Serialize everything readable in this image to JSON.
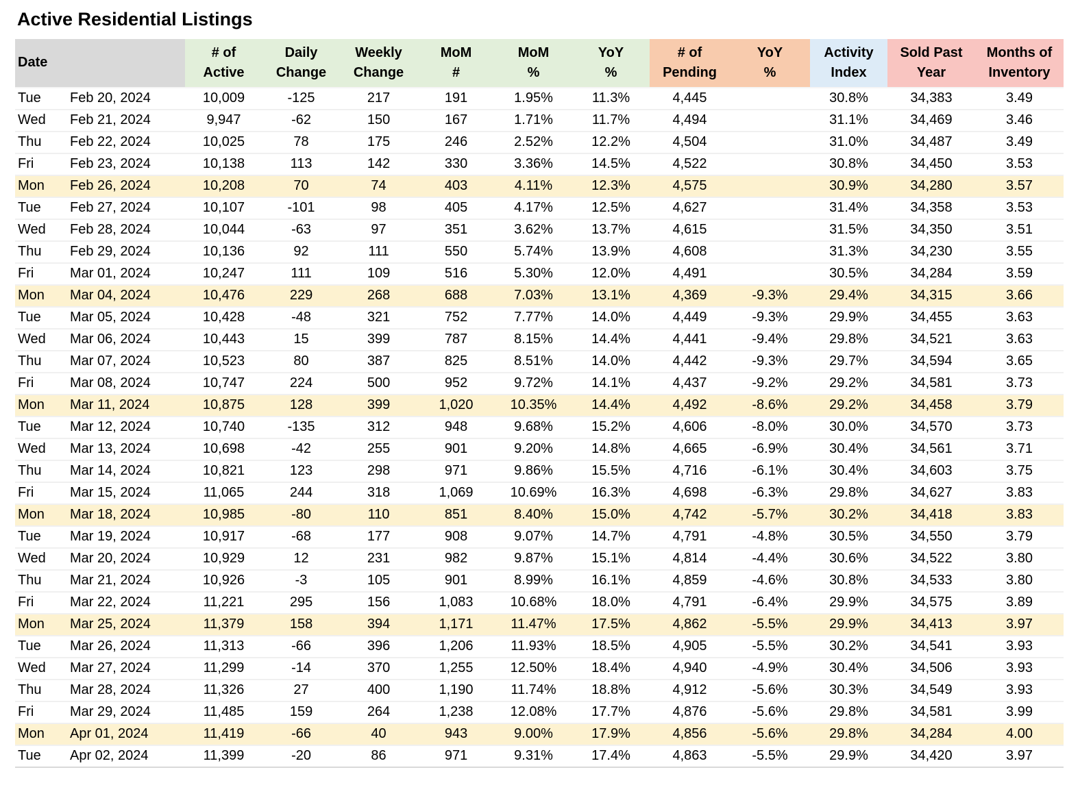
{
  "title": "Active Residential Listings",
  "colors": {
    "header_gray": "#d9d9d9",
    "header_green": "#e2efda",
    "header_orange": "#f8cbad",
    "header_blue": "#ddebf7",
    "header_pink": "#f9c5c1",
    "row_highlight": "#fdf2d0"
  },
  "table": {
    "header": {
      "date_label": "Date",
      "columns": [
        {
          "line1": "# of",
          "line2": "Active",
          "group": "green"
        },
        {
          "line1": "Daily",
          "line2": "Change",
          "group": "green"
        },
        {
          "line1": "Weekly",
          "line2": "Change",
          "group": "green"
        },
        {
          "line1": "MoM",
          "line2": "#",
          "group": "green"
        },
        {
          "line1": "MoM",
          "line2": "%",
          "group": "green"
        },
        {
          "line1": "YoY",
          "line2": "%",
          "group": "green"
        },
        {
          "line1": "# of",
          "line2": "Pending",
          "group": "orange"
        },
        {
          "line1": "YoY",
          "line2": "%",
          "group": "orange"
        },
        {
          "line1": "Activity",
          "line2": "Index",
          "group": "blue"
        },
        {
          "line1": "Sold Past",
          "line2": "Year",
          "group": "pink"
        },
        {
          "line1": "Months of",
          "line2": "Inventory",
          "group": "pink"
        }
      ]
    },
    "rows": [
      {
        "day": "Tue",
        "date": "Feb 20, 2024",
        "highlight": false,
        "values": [
          "10,009",
          "-125",
          "217",
          "191",
          "1.95%",
          "11.3%",
          "4,445",
          "",
          "30.8%",
          "34,383",
          "3.49"
        ]
      },
      {
        "day": "Wed",
        "date": "Feb 21, 2024",
        "highlight": false,
        "values": [
          "9,947",
          "-62",
          "150",
          "167",
          "1.71%",
          "11.7%",
          "4,494",
          "",
          "31.1%",
          "34,469",
          "3.46"
        ]
      },
      {
        "day": "Thu",
        "date": "Feb 22, 2024",
        "highlight": false,
        "values": [
          "10,025",
          "78",
          "175",
          "246",
          "2.52%",
          "12.2%",
          "4,504",
          "",
          "31.0%",
          "34,487",
          "3.49"
        ]
      },
      {
        "day": "Fri",
        "date": "Feb 23, 2024",
        "highlight": false,
        "values": [
          "10,138",
          "113",
          "142",
          "330",
          "3.36%",
          "14.5%",
          "4,522",
          "",
          "30.8%",
          "34,450",
          "3.53"
        ]
      },
      {
        "day": "Mon",
        "date": "Feb 26, 2024",
        "highlight": true,
        "values": [
          "10,208",
          "70",
          "74",
          "403",
          "4.11%",
          "12.3%",
          "4,575",
          "",
          "30.9%",
          "34,280",
          "3.57"
        ]
      },
      {
        "day": "Tue",
        "date": "Feb 27, 2024",
        "highlight": false,
        "values": [
          "10,107",
          "-101",
          "98",
          "405",
          "4.17%",
          "12.5%",
          "4,627",
          "",
          "31.4%",
          "34,358",
          "3.53"
        ]
      },
      {
        "day": "Wed",
        "date": "Feb 28, 2024",
        "highlight": false,
        "values": [
          "10,044",
          "-63",
          "97",
          "351",
          "3.62%",
          "13.7%",
          "4,615",
          "",
          "31.5%",
          "34,350",
          "3.51"
        ]
      },
      {
        "day": "Thu",
        "date": "Feb 29, 2024",
        "highlight": false,
        "values": [
          "10,136",
          "92",
          "111",
          "550",
          "5.74%",
          "13.9%",
          "4,608",
          "",
          "31.3%",
          "34,230",
          "3.55"
        ]
      },
      {
        "day": "Fri",
        "date": "Mar 01, 2024",
        "highlight": false,
        "values": [
          "10,247",
          "111",
          "109",
          "516",
          "5.30%",
          "12.0%",
          "4,491",
          "",
          "30.5%",
          "34,284",
          "3.59"
        ]
      },
      {
        "day": "Mon",
        "date": "Mar 04, 2024",
        "highlight": true,
        "values": [
          "10,476",
          "229",
          "268",
          "688",
          "7.03%",
          "13.1%",
          "4,369",
          "-9.3%",
          "29.4%",
          "34,315",
          "3.66"
        ]
      },
      {
        "day": "Tue",
        "date": "Mar 05, 2024",
        "highlight": false,
        "values": [
          "10,428",
          "-48",
          "321",
          "752",
          "7.77%",
          "14.0%",
          "4,449",
          "-9.3%",
          "29.9%",
          "34,455",
          "3.63"
        ]
      },
      {
        "day": "Wed",
        "date": "Mar 06, 2024",
        "highlight": false,
        "values": [
          "10,443",
          "15",
          "399",
          "787",
          "8.15%",
          "14.4%",
          "4,441",
          "-9.4%",
          "29.8%",
          "34,521",
          "3.63"
        ]
      },
      {
        "day": "Thu",
        "date": "Mar 07, 2024",
        "highlight": false,
        "values": [
          "10,523",
          "80",
          "387",
          "825",
          "8.51%",
          "14.0%",
          "4,442",
          "-9.3%",
          "29.7%",
          "34,594",
          "3.65"
        ]
      },
      {
        "day": "Fri",
        "date": "Mar 08, 2024",
        "highlight": false,
        "values": [
          "10,747",
          "224",
          "500",
          "952",
          "9.72%",
          "14.1%",
          "4,437",
          "-9.2%",
          "29.2%",
          "34,581",
          "3.73"
        ]
      },
      {
        "day": "Mon",
        "date": "Mar 11, 2024",
        "highlight": true,
        "values": [
          "10,875",
          "128",
          "399",
          "1,020",
          "10.35%",
          "14.4%",
          "4,492",
          "-8.6%",
          "29.2%",
          "34,458",
          "3.79"
        ]
      },
      {
        "day": "Tue",
        "date": "Mar 12, 2024",
        "highlight": false,
        "values": [
          "10,740",
          "-135",
          "312",
          "948",
          "9.68%",
          "15.2%",
          "4,606",
          "-8.0%",
          "30.0%",
          "34,570",
          "3.73"
        ]
      },
      {
        "day": "Wed",
        "date": "Mar 13, 2024",
        "highlight": false,
        "values": [
          "10,698",
          "-42",
          "255",
          "901",
          "9.20%",
          "14.8%",
          "4,665",
          "-6.9%",
          "30.4%",
          "34,561",
          "3.71"
        ]
      },
      {
        "day": "Thu",
        "date": "Mar 14, 2024",
        "highlight": false,
        "values": [
          "10,821",
          "123",
          "298",
          "971",
          "9.86%",
          "15.5%",
          "4,716",
          "-6.1%",
          "30.4%",
          "34,603",
          "3.75"
        ]
      },
      {
        "day": "Fri",
        "date": "Mar 15, 2024",
        "highlight": false,
        "values": [
          "11,065",
          "244",
          "318",
          "1,069",
          "10.69%",
          "16.3%",
          "4,698",
          "-6.3%",
          "29.8%",
          "34,627",
          "3.83"
        ]
      },
      {
        "day": "Mon",
        "date": "Mar 18, 2024",
        "highlight": true,
        "values": [
          "10,985",
          "-80",
          "110",
          "851",
          "8.40%",
          "15.0%",
          "4,742",
          "-5.7%",
          "30.2%",
          "34,418",
          "3.83"
        ]
      },
      {
        "day": "Tue",
        "date": "Mar 19, 2024",
        "highlight": false,
        "values": [
          "10,917",
          "-68",
          "177",
          "908",
          "9.07%",
          "14.7%",
          "4,791",
          "-4.8%",
          "30.5%",
          "34,550",
          "3.79"
        ]
      },
      {
        "day": "Wed",
        "date": "Mar 20, 2024",
        "highlight": false,
        "values": [
          "10,929",
          "12",
          "231",
          "982",
          "9.87%",
          "15.1%",
          "4,814",
          "-4.4%",
          "30.6%",
          "34,522",
          "3.80"
        ]
      },
      {
        "day": "Thu",
        "date": "Mar 21, 2024",
        "highlight": false,
        "values": [
          "10,926",
          "-3",
          "105",
          "901",
          "8.99%",
          "16.1%",
          "4,859",
          "-4.6%",
          "30.8%",
          "34,533",
          "3.80"
        ]
      },
      {
        "day": "Fri",
        "date": "Mar 22, 2024",
        "highlight": false,
        "values": [
          "11,221",
          "295",
          "156",
          "1,083",
          "10.68%",
          "18.0%",
          "4,791",
          "-6.4%",
          "29.9%",
          "34,575",
          "3.89"
        ]
      },
      {
        "day": "Mon",
        "date": "Mar 25, 2024",
        "highlight": true,
        "values": [
          "11,379",
          "158",
          "394",
          "1,171",
          "11.47%",
          "17.5%",
          "4,862",
          "-5.5%",
          "29.9%",
          "34,413",
          "3.97"
        ]
      },
      {
        "day": "Tue",
        "date": "Mar 26, 2024",
        "highlight": false,
        "values": [
          "11,313",
          "-66",
          "396",
          "1,206",
          "11.93%",
          "18.5%",
          "4,905",
          "-5.5%",
          "30.2%",
          "34,541",
          "3.93"
        ]
      },
      {
        "day": "Wed",
        "date": "Mar 27, 2024",
        "highlight": false,
        "values": [
          "11,299",
          "-14",
          "370",
          "1,255",
          "12.50%",
          "18.4%",
          "4,940",
          "-4.9%",
          "30.4%",
          "34,506",
          "3.93"
        ]
      },
      {
        "day": "Thu",
        "date": "Mar 28, 2024",
        "highlight": false,
        "values": [
          "11,326",
          "27",
          "400",
          "1,190",
          "11.74%",
          "18.8%",
          "4,912",
          "-5.6%",
          "30.3%",
          "34,549",
          "3.93"
        ]
      },
      {
        "day": "Fri",
        "date": "Mar 29, 2024",
        "highlight": false,
        "values": [
          "11,485",
          "159",
          "264",
          "1,238",
          "12.08%",
          "17.7%",
          "4,876",
          "-5.6%",
          "29.8%",
          "34,581",
          "3.99"
        ]
      },
      {
        "day": "Mon",
        "date": "Apr 01, 2024",
        "highlight": true,
        "values": [
          "11,419",
          "-66",
          "40",
          "943",
          "9.00%",
          "17.9%",
          "4,856",
          "-5.6%",
          "29.8%",
          "34,284",
          "4.00"
        ]
      },
      {
        "day": "Tue",
        "date": "Apr 02, 2024",
        "highlight": false,
        "values": [
          "11,399",
          "-20",
          "86",
          "971",
          "9.31%",
          "17.4%",
          "4,863",
          "-5.5%",
          "29.9%",
          "34,420",
          "3.97"
        ]
      }
    ]
  }
}
